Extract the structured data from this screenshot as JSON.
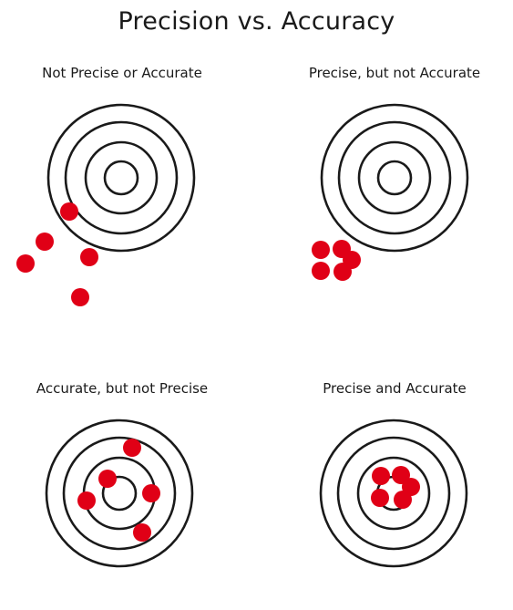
{
  "title": "Precision vs. Accuracy",
  "colors": {
    "ring": "#1a1a1a",
    "dot": "#e00016",
    "background": "#ffffff"
  },
  "panels": [
    {
      "id": "not-precise-or-accurate",
      "label": "Not Precise or Accurate"
    },
    {
      "id": "precise-not-accurate",
      "label": "Precise, but not Accurate"
    },
    {
      "id": "accurate-not-precise",
      "label": "Accurate, but not Precise"
    },
    {
      "id": "precise-and-accurate",
      "label": "Precise and Accurate"
    }
  ]
}
